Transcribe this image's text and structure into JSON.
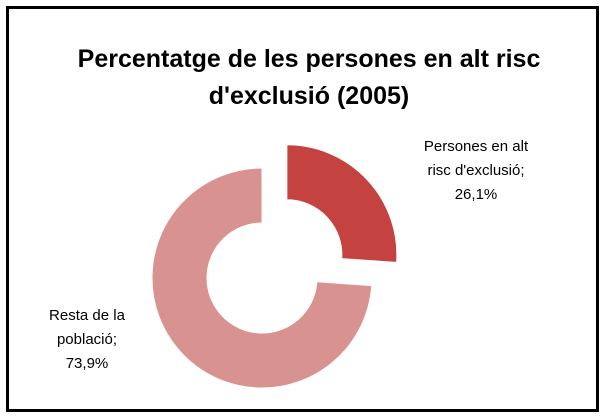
{
  "chart_data": {
    "type": "doughnut",
    "title": "Percentatge de les persones en alt risc d'exclusió (2005)",
    "categories": [
      "Persones en alt risc d'exclusió",
      "Resta de la població"
    ],
    "values": [
      26.1,
      73.9
    ],
    "value_labels": [
      "26,1%",
      "73,9%"
    ],
    "label_separator": ";",
    "colors": [
      "#c4423f",
      "#d8928f"
    ]
  }
}
